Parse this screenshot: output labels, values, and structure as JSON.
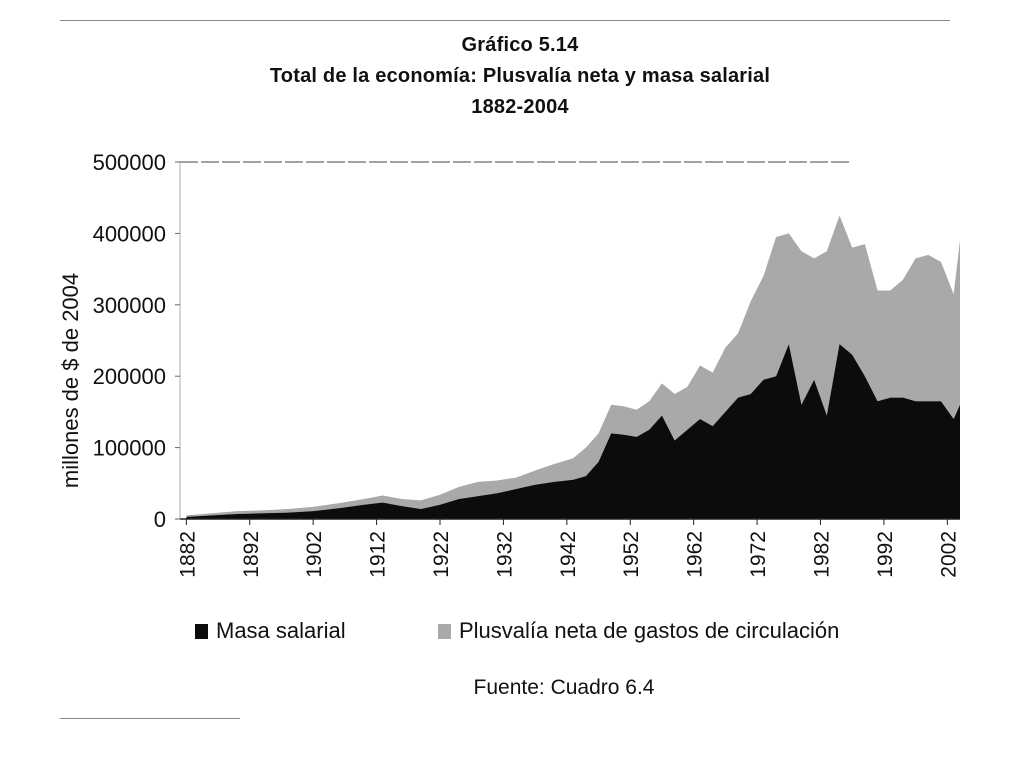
{
  "chart_data": {
    "type": "area",
    "stacked": true,
    "title": "Gráfico 5.14",
    "subtitle": "Total de la economía: Plusvalía neta y masa salarial",
    "period": "1882-2004",
    "xlabel": "",
    "ylabel": "millones de $ de 2004",
    "ylim": [
      0,
      500000
    ],
    "xlim": [
      1881,
      2004
    ],
    "yticks": [
      "0",
      "100000",
      "200000",
      "300000",
      "400000",
      "500000"
    ],
    "xticks": [
      "1882",
      "1892",
      "1902",
      "1912",
      "1922",
      "1932",
      "1942",
      "1952",
      "1962",
      "1972",
      "1982",
      "1992",
      "2002"
    ],
    "grid": "top line only",
    "legend": "bottom",
    "x": [
      1882,
      1886,
      1890,
      1894,
      1898,
      1902,
      1906,
      1910,
      1913,
      1916,
      1919,
      1922,
      1925,
      1928,
      1931,
      1934,
      1937,
      1940,
      1943,
      1945,
      1947,
      1949,
      1951,
      1953,
      1955,
      1957,
      1959,
      1961,
      1963,
      1965,
      1967,
      1969,
      1971,
      1973,
      1975,
      1977,
      1979,
      1981,
      1983,
      1985,
      1987,
      1989,
      1991,
      1993,
      1995,
      1997,
      1999,
      2001,
      2003,
      2004
    ],
    "series": [
      {
        "name": "Masa salarial",
        "color": "#0c0c0c",
        "values": [
          3000,
          5000,
          7000,
          8000,
          9000,
          11000,
          15000,
          20000,
          23000,
          18000,
          14000,
          20000,
          28000,
          32000,
          36000,
          42000,
          48000,
          52000,
          55000,
          60000,
          80000,
          120000,
          118000,
          115000,
          125000,
          145000,
          110000,
          125000,
          140000,
          130000,
          150000,
          170000,
          175000,
          195000,
          200000,
          245000,
          160000,
          195000,
          145000,
          245000,
          230000,
          200000,
          165000,
          170000,
          170000,
          165000,
          165000,
          165000,
          140000,
          160000
        ]
      },
      {
        "name": "Plusvalía neta de gastos de circulación",
        "color": "#a9a9a9",
        "values": [
          2000,
          3000,
          4000,
          4000,
          5000,
          6000,
          7000,
          8000,
          10000,
          10000,
          12000,
          14000,
          17000,
          20000,
          18000,
          16000,
          20000,
          25000,
          30000,
          40000,
          40000,
          40000,
          40000,
          38000,
          40000,
          45000,
          65000,
          60000,
          75000,
          75000,
          90000,
          90000,
          130000,
          145000,
          195000,
          155000,
          215000,
          170000,
          230000,
          180000,
          150000,
          185000,
          155000,
          150000,
          165000,
          200000,
          205000,
          195000,
          175000,
          230000
        ]
      }
    ]
  },
  "source": "Fuente: Cuadro 6.4"
}
